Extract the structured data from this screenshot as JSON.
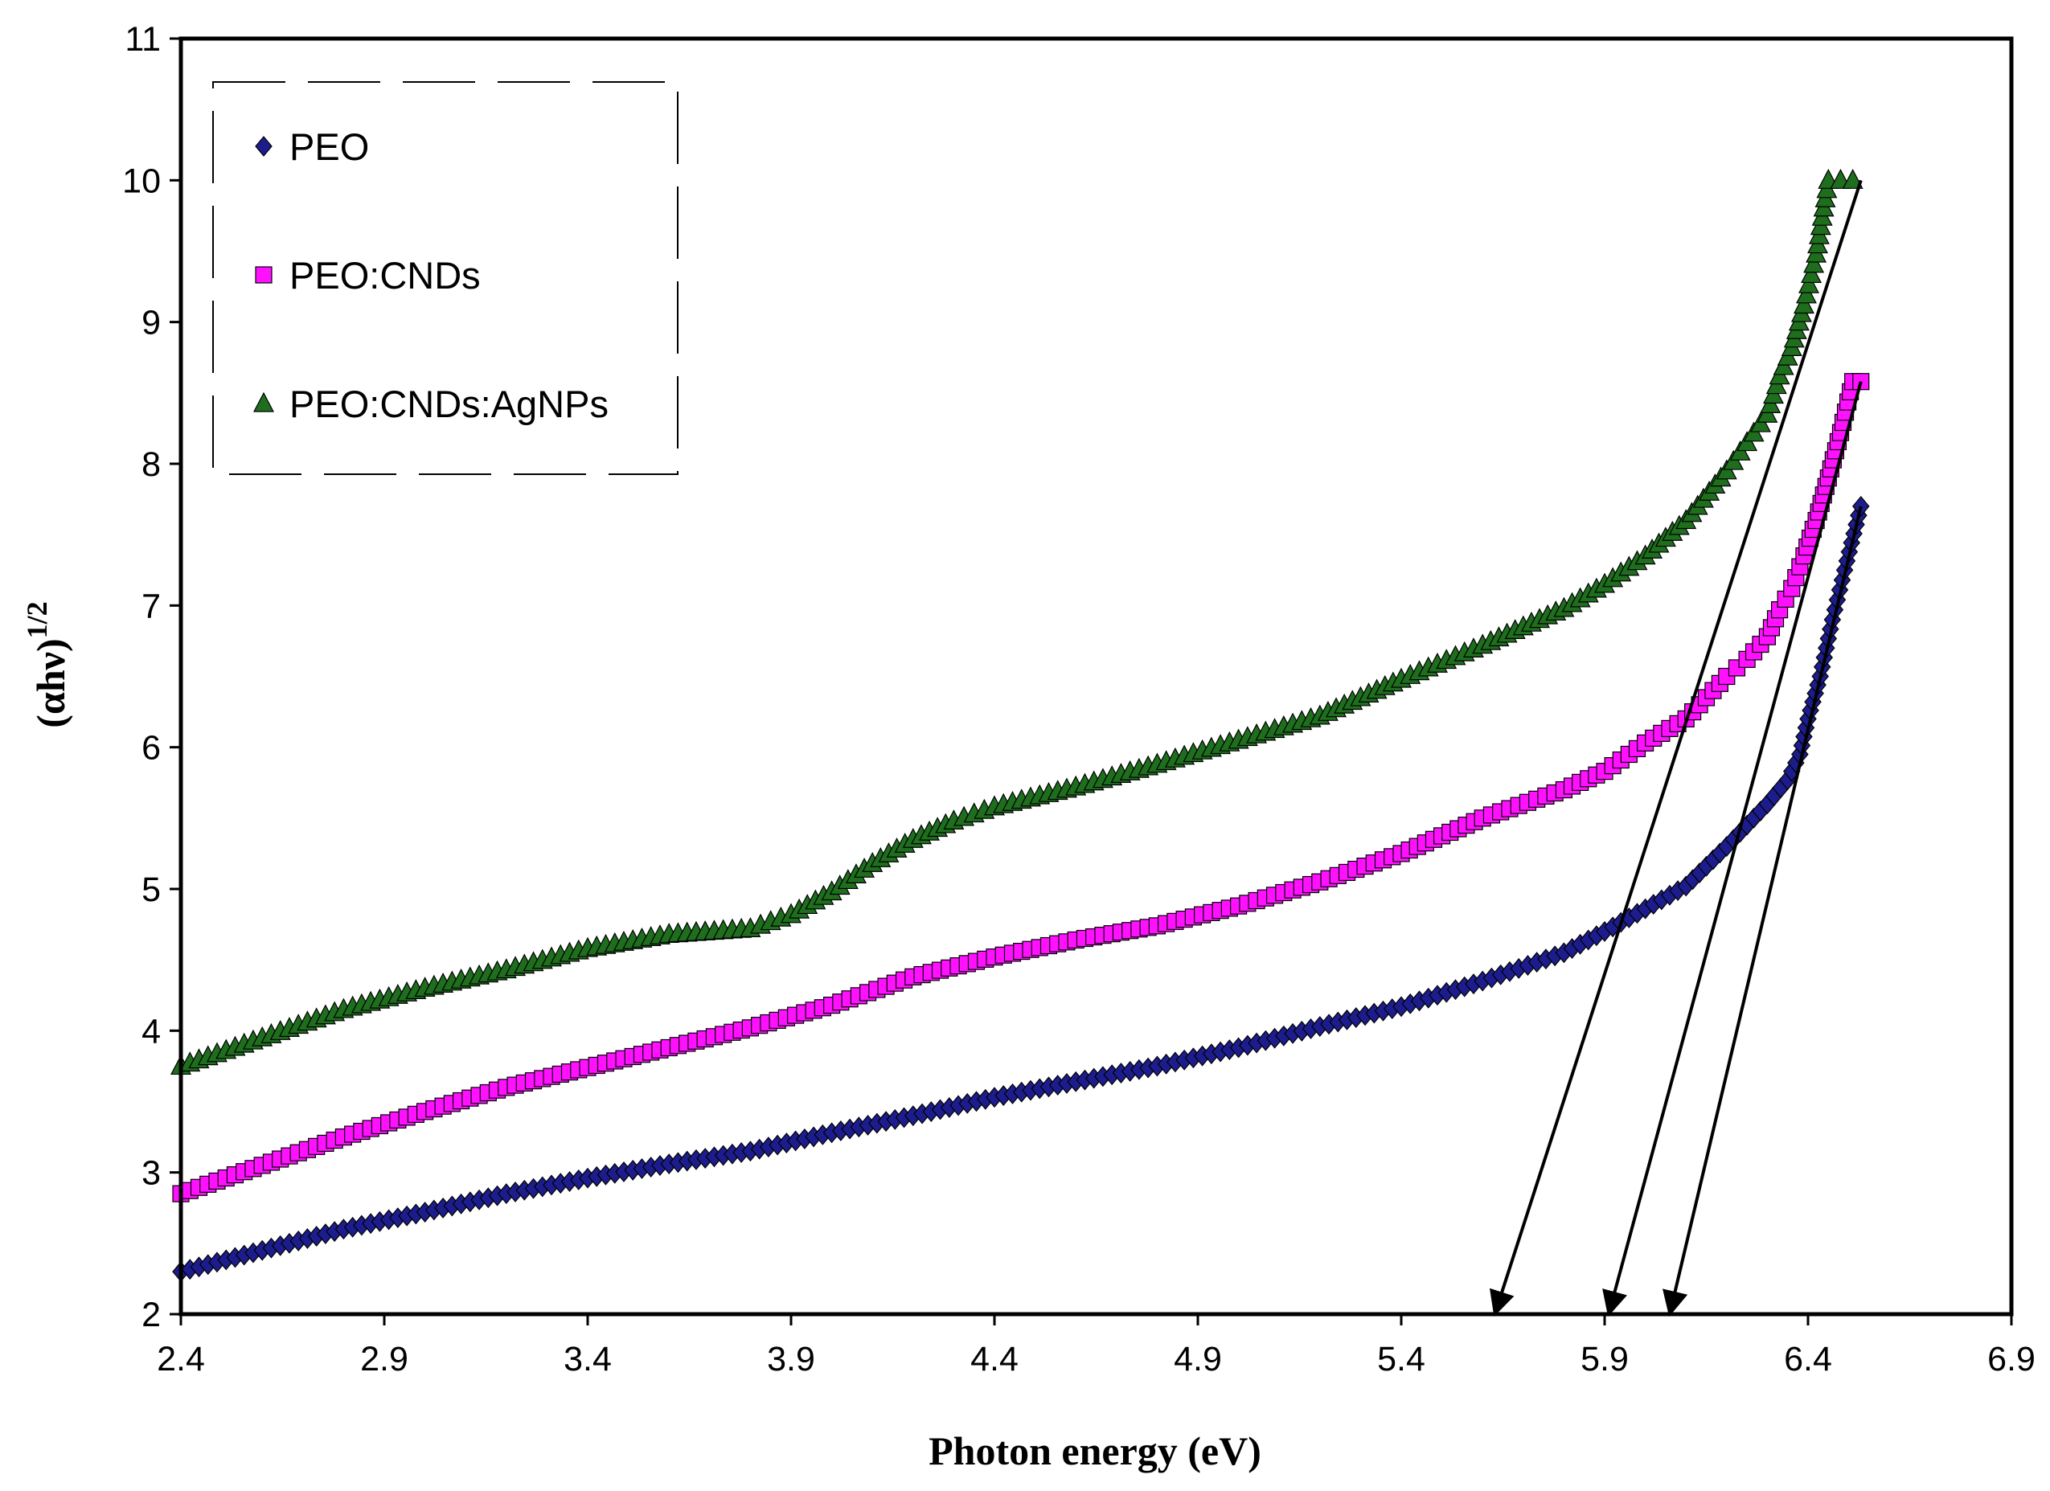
{
  "chart_data": {
    "type": "scatter",
    "title": "",
    "xlabel": "Photon energy (eV)",
    "ylabel_main": "(αhν)",
    "ylabel_sup": "1/2",
    "xlim": [
      2.4,
      6.9
    ],
    "ylim": [
      2,
      11
    ],
    "x_ticks": [
      "2.4",
      "2.9",
      "3.4",
      "3.9",
      "4.4",
      "4.9",
      "5.4",
      "5.9",
      "6.4",
      "6.9"
    ],
    "y_ticks": [
      "2",
      "3",
      "4",
      "5",
      "6",
      "7",
      "8",
      "9",
      "10",
      "11"
    ],
    "grid": false,
    "legend_position": "top-left",
    "series": [
      {
        "name": "PEO",
        "marker": "diamond",
        "color": "#1c1c8c",
        "x": [
          2.4,
          2.6,
          2.8,
          3.0,
          3.2,
          3.4,
          3.6,
          3.8,
          4.0,
          4.2,
          4.4,
          4.6,
          4.8,
          5.0,
          5.2,
          5.4,
          5.6,
          5.8,
          5.9,
          6.0,
          6.1,
          6.2,
          6.25,
          6.3,
          6.35,
          6.38,
          6.4,
          6.43,
          6.46,
          6.49,
          6.53
        ],
        "y": [
          2.3,
          2.45,
          2.6,
          2.72,
          2.85,
          2.96,
          3.06,
          3.15,
          3.28,
          3.4,
          3.53,
          3.64,
          3.75,
          3.88,
          4.03,
          4.17,
          4.35,
          4.55,
          4.7,
          4.86,
          5.02,
          5.3,
          5.45,
          5.6,
          5.77,
          5.95,
          6.2,
          6.5,
          6.9,
          7.25,
          7.7
        ]
      },
      {
        "name": "PEO:CNDs",
        "marker": "square",
        "color": "#ff10ff",
        "x": [
          2.4,
          2.6,
          2.8,
          3.0,
          3.2,
          3.4,
          3.6,
          3.8,
          4.0,
          4.2,
          4.4,
          4.6,
          4.8,
          5.0,
          5.2,
          5.4,
          5.6,
          5.8,
          5.9,
          6.0,
          6.1,
          6.2,
          6.25,
          6.3,
          6.33,
          6.36,
          6.39,
          6.42,
          6.45,
          6.48,
          6.51,
          6.53
        ],
        "y": [
          2.85,
          3.05,
          3.25,
          3.43,
          3.6,
          3.74,
          3.88,
          4.02,
          4.18,
          4.38,
          4.52,
          4.64,
          4.74,
          4.88,
          5.05,
          5.25,
          5.5,
          5.7,
          5.83,
          6.03,
          6.2,
          6.5,
          6.62,
          6.78,
          6.97,
          7.12,
          7.35,
          7.6,
          7.9,
          8.22,
          8.58,
          8.58
        ]
      },
      {
        "name": "PEO:CNDs:AgNPs",
        "marker": "triangle",
        "color": "#1e6e1e",
        "x": [
          2.4,
          2.6,
          2.8,
          3.0,
          3.2,
          3.4,
          3.6,
          3.8,
          3.9,
          4.0,
          4.1,
          4.2,
          4.3,
          4.4,
          4.6,
          4.8,
          5.0,
          5.2,
          5.4,
          5.6,
          5.8,
          5.9,
          6.0,
          6.1,
          6.2,
          6.25,
          6.3,
          6.33,
          6.36,
          6.39,
          6.42,
          6.45,
          6.48,
          6.51
        ],
        "y": [
          3.75,
          3.95,
          4.15,
          4.3,
          4.43,
          4.58,
          4.68,
          4.72,
          4.82,
          4.98,
          5.18,
          5.35,
          5.48,
          5.58,
          5.72,
          5.88,
          6.05,
          6.22,
          6.48,
          6.72,
          6.98,
          7.15,
          7.35,
          7.6,
          7.95,
          8.15,
          8.35,
          8.62,
          8.82,
          9.12,
          9.48,
          10.0,
          10.0,
          10.0
        ]
      }
    ],
    "extrapolation_lines": [
      {
        "from": [
          6.53,
          10.0
        ],
        "to": [
          5.63,
          2.0
        ]
      },
      {
        "from": [
          6.53,
          8.58
        ],
        "to": [
          5.91,
          2.0
        ]
      },
      {
        "from": [
          6.53,
          7.7
        ],
        "to": [
          6.06,
          2.0
        ]
      }
    ]
  }
}
